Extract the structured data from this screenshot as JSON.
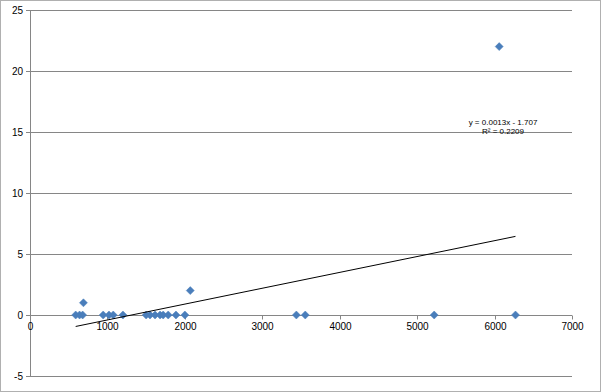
{
  "chart_data": {
    "type": "scatter",
    "x": [
      590,
      640,
      680,
      690,
      945,
      1020,
      1075,
      1200,
      1500,
      1550,
      1615,
      1680,
      1720,
      1785,
      1885,
      2000,
      2070,
      3440,
      3555,
      5220,
      6060,
      6270
    ],
    "values": [
      0,
      0,
      0,
      1,
      0,
      0,
      0,
      0,
      0,
      0,
      0,
      0,
      0,
      0,
      0,
      0,
      2,
      0,
      0,
      0,
      22,
      0
    ],
    "color": "#4a7ebb",
    "marker": "diamond",
    "xlim": [
      0,
      7000
    ],
    "xticks": [
      0,
      1000,
      2000,
      3000,
      4000,
      5000,
      6000,
      7000
    ],
    "ylim": [
      -5,
      25
    ],
    "yticks": [
      -5,
      0,
      5,
      10,
      15,
      20,
      25
    ],
    "grid": true,
    "trendline": {
      "slope": 0.0013,
      "intercept": -1.707,
      "equation": "y = 0.0013x - 1.707",
      "r_squared": "R² = 0.2209"
    }
  }
}
